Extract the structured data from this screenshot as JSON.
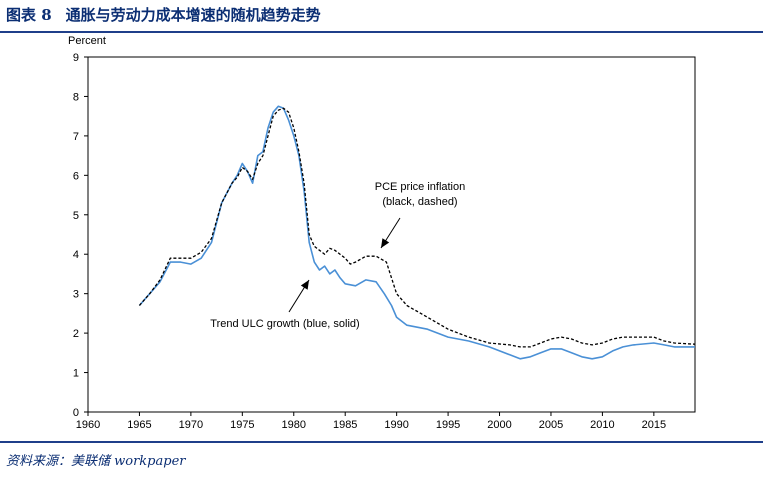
{
  "figure": {
    "number": "图表 8",
    "title": "通胀与劳动力成本增速的随机趋势走势",
    "source": "资料来源：美联储 workpaper"
  },
  "chart_data": {
    "type": "line",
    "ylabel": "Percent",
    "xlim": [
      1960,
      2019
    ],
    "ylim": [
      0,
      9
    ],
    "xticks": [
      1960,
      1965,
      1970,
      1975,
      1980,
      1985,
      1990,
      1995,
      2000,
      2005,
      2010,
      2015
    ],
    "yticks": [
      0,
      1,
      2,
      3,
      4,
      5,
      6,
      7,
      8,
      9
    ],
    "grid": false,
    "annotations": [
      {
        "lines": [
          "PCE price inflation",
          "(black, dashed)"
        ],
        "target_series": "PCE price inflation"
      },
      {
        "lines": [
          "Trend ULC growth (blue, solid)"
        ],
        "target_series": "Trend ULC growth"
      }
    ],
    "series": [
      {
        "name": "Trend ULC growth",
        "color": "#4a90d6",
        "style": "solid",
        "points": [
          [
            1965,
            2.7
          ],
          [
            1966,
            3.0
          ],
          [
            1967,
            3.3
          ],
          [
            1968,
            3.8
          ],
          [
            1969,
            3.8
          ],
          [
            1970,
            3.75
          ],
          [
            1971,
            3.9
          ],
          [
            1972,
            4.3
          ],
          [
            1973,
            5.3
          ],
          [
            1974,
            5.8
          ],
          [
            1974.5,
            6.0
          ],
          [
            1975,
            6.3
          ],
          [
            1975.5,
            6.1
          ],
          [
            1976,
            5.8
          ],
          [
            1976.5,
            6.5
          ],
          [
            1977,
            6.6
          ],
          [
            1977.5,
            7.2
          ],
          [
            1978,
            7.6
          ],
          [
            1978.5,
            7.75
          ],
          [
            1979,
            7.7
          ],
          [
            1979.5,
            7.4
          ],
          [
            1980,
            7.0
          ],
          [
            1980.5,
            6.5
          ],
          [
            1981,
            5.6
          ],
          [
            1981.5,
            4.3
          ],
          [
            1982,
            3.8
          ],
          [
            1982.5,
            3.6
          ],
          [
            1983,
            3.7
          ],
          [
            1983.5,
            3.5
          ],
          [
            1984,
            3.6
          ],
          [
            1984.5,
            3.4
          ],
          [
            1985,
            3.25
          ],
          [
            1986,
            3.2
          ],
          [
            1987,
            3.35
          ],
          [
            1988,
            3.3
          ],
          [
            1988.8,
            3.0
          ],
          [
            1989.5,
            2.7
          ],
          [
            1990,
            2.4
          ],
          [
            1991,
            2.2
          ],
          [
            1993,
            2.1
          ],
          [
            1995,
            1.9
          ],
          [
            1997,
            1.8
          ],
          [
            1999,
            1.65
          ],
          [
            2001,
            1.45
          ],
          [
            2002,
            1.35
          ],
          [
            2003,
            1.4
          ],
          [
            2004,
            1.5
          ],
          [
            2005,
            1.6
          ],
          [
            2006,
            1.6
          ],
          [
            2007,
            1.5
          ],
          [
            2008,
            1.4
          ],
          [
            2009,
            1.35
          ],
          [
            2010,
            1.4
          ],
          [
            2011,
            1.55
          ],
          [
            2012,
            1.65
          ],
          [
            2013,
            1.7
          ],
          [
            2015,
            1.75
          ],
          [
            2016,
            1.7
          ],
          [
            2017,
            1.65
          ],
          [
            2019,
            1.65
          ]
        ]
      },
      {
        "name": "PCE price inflation",
        "color": "#000000",
        "style": "dashed",
        "points": [
          [
            1965,
            2.7
          ],
          [
            1966,
            3.0
          ],
          [
            1967,
            3.35
          ],
          [
            1968,
            3.9
          ],
          [
            1969,
            3.9
          ],
          [
            1970,
            3.9
          ],
          [
            1971,
            4.05
          ],
          [
            1972,
            4.4
          ],
          [
            1973,
            5.3
          ],
          [
            1974,
            5.8
          ],
          [
            1974.5,
            5.95
          ],
          [
            1975,
            6.2
          ],
          [
            1975.5,
            6.1
          ],
          [
            1976,
            5.9
          ],
          [
            1976.5,
            6.3
          ],
          [
            1977,
            6.5
          ],
          [
            1977.5,
            7.0
          ],
          [
            1978,
            7.5
          ],
          [
            1978.5,
            7.65
          ],
          [
            1979,
            7.7
          ],
          [
            1979.5,
            7.6
          ],
          [
            1980,
            7.2
          ],
          [
            1980.5,
            6.6
          ],
          [
            1981,
            5.8
          ],
          [
            1981.5,
            4.5
          ],
          [
            1982,
            4.2
          ],
          [
            1982.5,
            4.1
          ],
          [
            1983,
            4.0
          ],
          [
            1983.5,
            4.15
          ],
          [
            1984,
            4.1
          ],
          [
            1985,
            3.9
          ],
          [
            1985.5,
            3.75
          ],
          [
            1986,
            3.8
          ],
          [
            1987,
            3.95
          ],
          [
            1988,
            3.95
          ],
          [
            1989,
            3.8
          ],
          [
            1989.5,
            3.4
          ],
          [
            1990,
            3.0
          ],
          [
            1991,
            2.7
          ],
          [
            1993,
            2.4
          ],
          [
            1995,
            2.1
          ],
          [
            1997,
            1.9
          ],
          [
            1999,
            1.75
          ],
          [
            2001,
            1.7
          ],
          [
            2002,
            1.65
          ],
          [
            2003,
            1.65
          ],
          [
            2004,
            1.75
          ],
          [
            2005,
            1.85
          ],
          [
            2006,
            1.9
          ],
          [
            2007,
            1.85
          ],
          [
            2008,
            1.75
          ],
          [
            2009,
            1.7
          ],
          [
            2010,
            1.75
          ],
          [
            2011,
            1.85
          ],
          [
            2012,
            1.9
          ],
          [
            2014,
            1.9
          ],
          [
            2015,
            1.9
          ],
          [
            2016,
            1.8
          ],
          [
            2017,
            1.75
          ],
          [
            2019,
            1.72
          ]
        ]
      }
    ]
  }
}
